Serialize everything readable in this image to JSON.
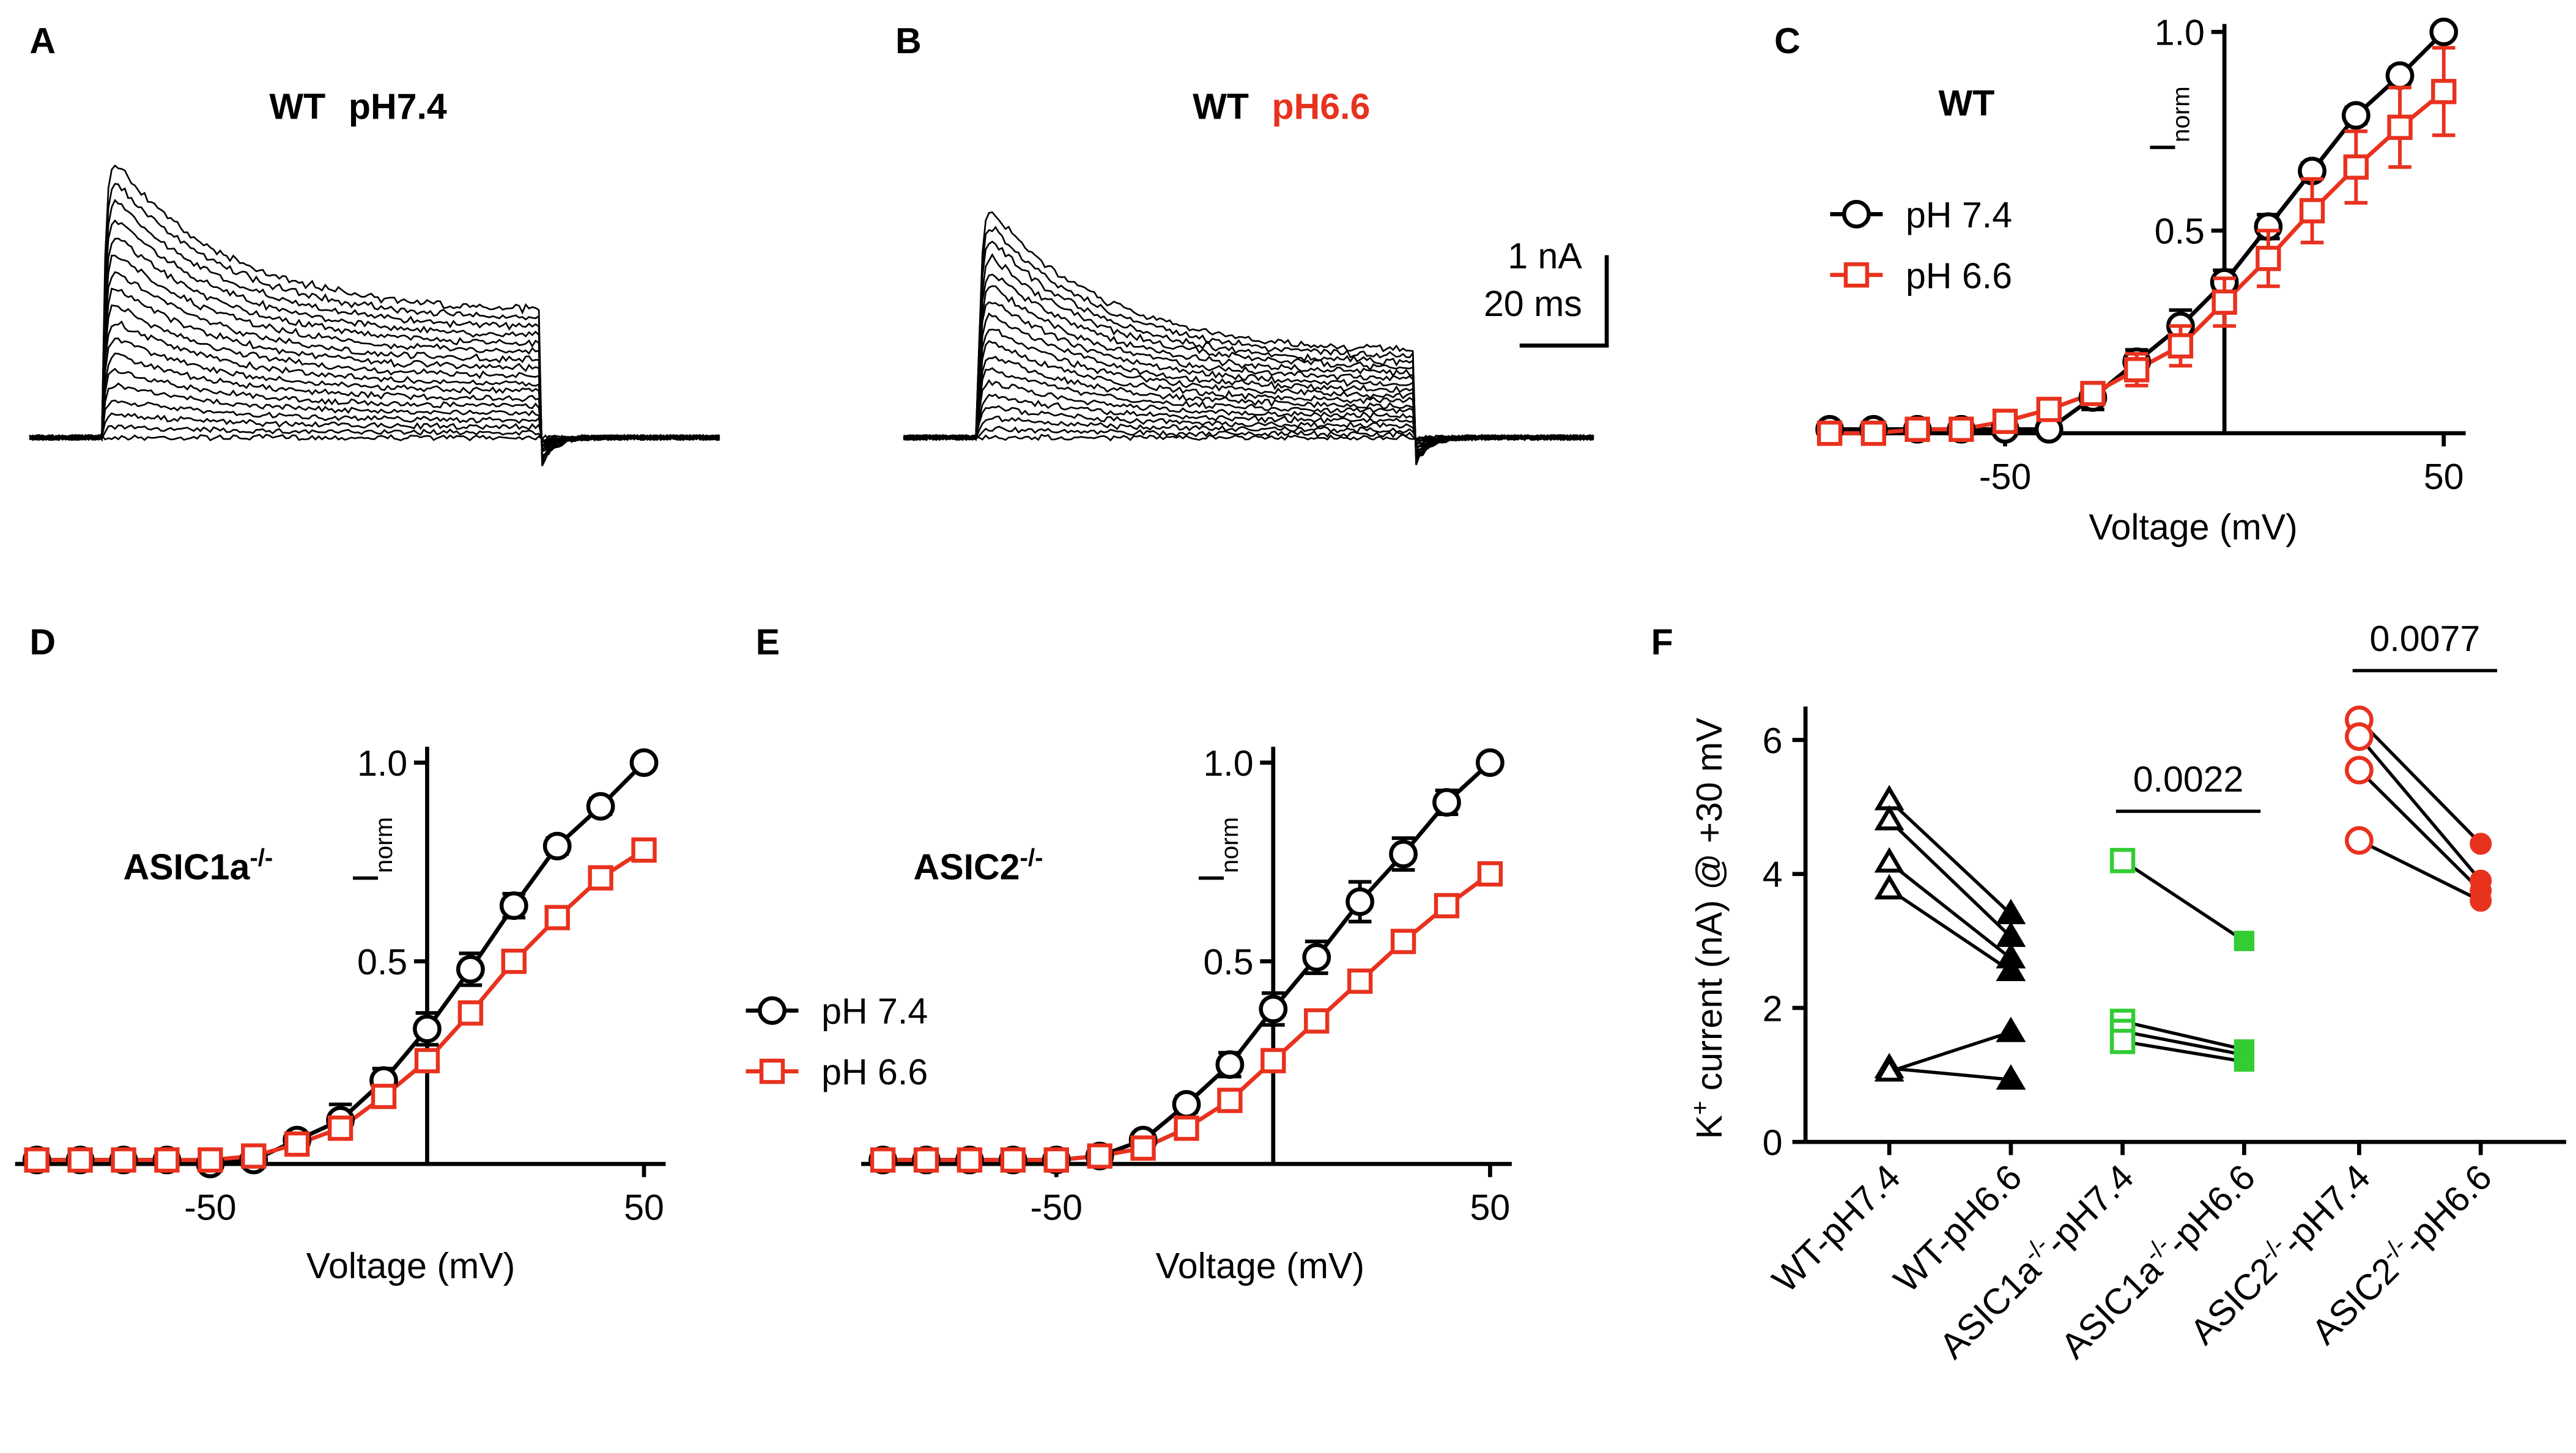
{
  "chart_data": [
    {
      "panel": "A",
      "type": "traces",
      "title": [
        "WT",
        "pH7.4"
      ],
      "title_colors": [
        "#000000",
        "#000000"
      ]
    },
    {
      "panel": "B",
      "type": "traces",
      "title": [
        "WT",
        "pH6.6"
      ],
      "title_colors": [
        "#000000",
        "#e8321e"
      ],
      "scalebar": [
        "1 nA",
        "20 ms"
      ]
    },
    {
      "panel": "C",
      "type": "line",
      "title": [
        "WT"
      ],
      "xlabel": "Voltage (mV)",
      "ylabel": [
        "I",
        "norm"
      ],
      "legend": true,
      "x": [
        -90,
        -80,
        -70,
        -60,
        -50,
        -40,
        -30,
        -20,
        -10,
        0,
        10,
        20,
        30,
        40,
        50
      ],
      "xlim": [
        -93,
        55
      ],
      "ylim": [
        -0.01,
        1.02
      ],
      "xticks": [
        -50,
        50
      ],
      "yticks": [
        0.5,
        {
          "value": 1,
          "label": "1.0"
        }
      ],
      "series": [
        {
          "name": "pH 7.4",
          "color": "#000000",
          "marker": "circle",
          "values": [
            0,
            0,
            0,
            0,
            0,
            0,
            0.08,
            0.17,
            0.26,
            0.37,
            0.51,
            0.65,
            0.79,
            0.89,
            1.0
          ],
          "errors": [
            0,
            0,
            0,
            0,
            0,
            0.01,
            0.03,
            0.03,
            0.04,
            0.03,
            0.03,
            0.02,
            0.02,
            0.02,
            0.01
          ]
        },
        {
          "name": "pH 6.6",
          "color": "#e8321e",
          "marker": "square",
          "values": [
            -0.01,
            -0.01,
            0,
            0,
            0.02,
            0.05,
            0.09,
            0.15,
            0.21,
            0.32,
            0.43,
            0.55,
            0.66,
            0.76,
            0.85
          ],
          "errors": [
            0.01,
            0.01,
            0.01,
            0.01,
            0.01,
            0.01,
            0.02,
            0.04,
            0.05,
            0.06,
            0.07,
            0.08,
            0.09,
            0.1,
            0.11
          ]
        }
      ]
    },
    {
      "panel": "D",
      "type": "line",
      "title": [
        "ASIC1a",
        "-/-"
      ],
      "xlabel": "Voltage (mV)",
      "ylabel": [
        "I",
        "norm"
      ],
      "legend": false,
      "x": [
        -90,
        -80,
        -70,
        -60,
        -50,
        -40,
        -30,
        -20,
        -10,
        0,
        10,
        20,
        30,
        40,
        50
      ],
      "xlim": [
        -95,
        55
      ],
      "ylim": [
        -0.01,
        1.04
      ],
      "xticks": [
        -50,
        50
      ],
      "yticks": [
        0.5,
        {
          "value": 1,
          "label": "1.0"
        }
      ],
      "series": [
        {
          "name": "pH 7.4",
          "color": "#000000",
          "marker": "circle",
          "values": [
            0,
            0,
            0,
            0,
            -0.01,
            0,
            0.05,
            0.1,
            0.2,
            0.33,
            0.48,
            0.64,
            0.79,
            0.89,
            1.0
          ],
          "errors": [
            0,
            0,
            0,
            0,
            0,
            0,
            0.01,
            0.04,
            0.03,
            0.04,
            0.04,
            0.03,
            0.02,
            0.02,
            0.01
          ]
        },
        {
          "name": "pH 6.6",
          "color": "#e8321e",
          "marker": "square",
          "values": [
            0,
            0,
            0,
            0,
            0,
            0.01,
            0.04,
            0.08,
            0.16,
            0.25,
            0.37,
            0.5,
            0.61,
            0.71,
            0.78
          ],
          "errors": [
            0.01,
            0.01,
            0.01,
            0.01,
            0.01,
            0.01,
            0.01,
            0.01,
            0.01,
            0.01,
            0.01,
            0.01,
            0.01,
            0.01,
            0.01
          ]
        }
      ]
    },
    {
      "panel": "E",
      "type": "line",
      "title": [
        "ASIC2",
        "-/-"
      ],
      "xlabel": "Voltage (mV)",
      "ylabel": [
        "I",
        "norm"
      ],
      "legend": true,
      "x": [
        -90,
        -80,
        -70,
        -60,
        -50,
        -40,
        -30,
        -20,
        -10,
        0,
        10,
        20,
        30,
        40,
        50
      ],
      "xlim": [
        -95,
        55
      ],
      "ylim": [
        -0.01,
        1.04
      ],
      "xticks": [
        -50,
        50
      ],
      "yticks": [
        0.5,
        {
          "value": 1,
          "label": "1.0"
        }
      ],
      "series": [
        {
          "name": "pH 7.4",
          "color": "#000000",
          "marker": "circle",
          "values": [
            0,
            0,
            0,
            0,
            0,
            0.01,
            0.05,
            0.14,
            0.24,
            0.38,
            0.51,
            0.65,
            0.77,
            0.9,
            1.0
          ],
          "errors": [
            0,
            0,
            0,
            0,
            0,
            0,
            0.01,
            0.02,
            0.03,
            0.04,
            0.04,
            0.05,
            0.04,
            0.03,
            0.01
          ]
        },
        {
          "name": "pH 6.6",
          "color": "#e8321e",
          "marker": "square",
          "values": [
            0,
            0,
            0,
            0,
            0,
            0.01,
            0.03,
            0.08,
            0.15,
            0.25,
            0.35,
            0.45,
            0.55,
            0.64,
            0.72
          ],
          "errors": [
            0.01,
            0.01,
            0.01,
            0.01,
            0.01,
            0.01,
            0.01,
            0.01,
            0.01,
            0.01,
            0.01,
            0.01,
            0.01,
            0.01,
            0.01
          ]
        }
      ]
    },
    {
      "panel": "F",
      "type": "paired",
      "ylabel": [
        "K",
        "+",
        " current (nA) @ +30 mV"
      ],
      "ylim": [
        0,
        6.5
      ],
      "yticks": [
        0,
        2,
        4,
        6
      ],
      "categories": [
        [
          "WT-pH7.4"
        ],
        [
          "WT-pH6.6"
        ],
        [
          "ASIC1a",
          "-/-",
          "-pH7.4"
        ],
        [
          "ASIC1a",
          "-/-",
          "-pH6.6"
        ],
        [
          "ASIC2",
          "-/-",
          "-pH7.4"
        ],
        [
          "ASIC2",
          "-/-",
          "-pH6.6"
        ]
      ],
      "groups": [
        {
          "color": "#000000",
          "marker": "triangle",
          "before": [
            5.1,
            4.8,
            4.17,
            3.77,
            1.1,
            1.05
          ],
          "after": [
            3.4,
            3.06,
            2.74,
            2.55,
            0.93,
            1.64
          ]
        },
        {
          "color": "#33cc33",
          "marker": "square",
          "before": [
            4.2,
            1.8,
            1.65,
            1.5
          ],
          "after": [
            3.0,
            1.38,
            1.3,
            1.2
          ],
          "pvalue": "0.0022"
        },
        {
          "color": "#e8321e",
          "marker": "circle",
          "before": [
            6.3,
            6.05,
            5.55,
            4.5
          ],
          "after": [
            4.45,
            3.9,
            3.75,
            3.6
          ],
          "pvalue": "0.0077"
        }
      ]
    }
  ]
}
